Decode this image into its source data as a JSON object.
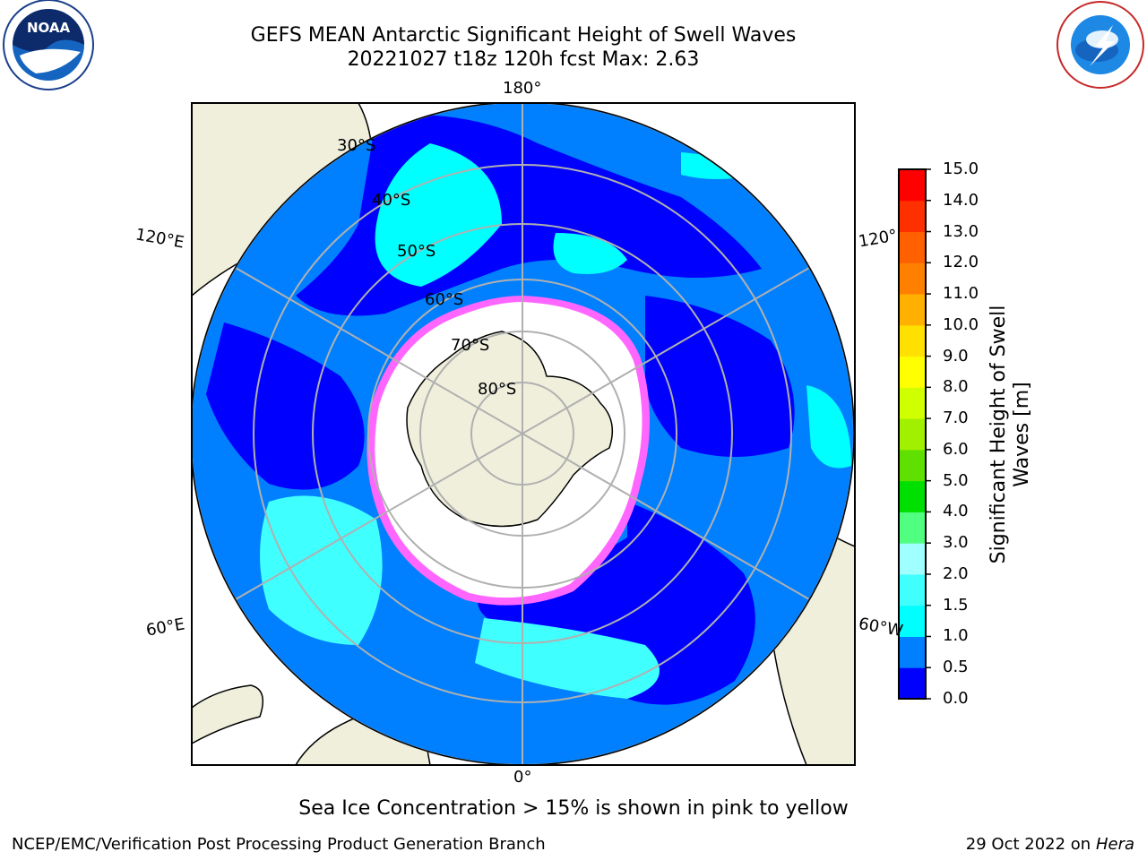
{
  "title_line1": "GEFS MEAN Antarctic Significant Height of Swell Waves",
  "title_line2": "20221027 t18z 120h fcst   Max: 2.63",
  "lon_labels": {
    "top": "180°",
    "bottom": "0°",
    "left_upper": "120°E",
    "left_lower": "60°E",
    "right_upper": "120°",
    "right_lower": "60°W"
  },
  "lat_labels": [
    "30°S",
    "40°S",
    "50°S",
    "60°S",
    "70°S",
    "80°S"
  ],
  "colorbar": {
    "title_line1": "Significant Height of Swell",
    "title_line2": "Waves [m]",
    "ticks": [
      "0.0",
      "0.5",
      "1.0",
      "1.5",
      "2.0",
      "3.0",
      "4.0",
      "5.0",
      "6.0",
      "7.0",
      "8.0",
      "9.0",
      "10.0",
      "11.0",
      "12.0",
      "13.0",
      "14.0",
      "15.0"
    ],
    "colors": [
      "#0000ff",
      "#0080ff",
      "#00ffff",
      "#40ffff",
      "#a0ffff",
      "#50ff80",
      "#00e000",
      "#60e000",
      "#a0f000",
      "#d0ff00",
      "#ffff00",
      "#ffe000",
      "#ffb000",
      "#ff8000",
      "#ff6000",
      "#ff3000",
      "#ff0000"
    ]
  },
  "logos": {
    "noaa": "NOAA",
    "nws": "NATIONAL WEATHER SERVICE"
  },
  "footer_note": "Sea Ice Concentration > 15% is shown in pink to yellow",
  "credit": "NCEP/EMC/Verification Post Processing Product Generation Branch",
  "date_prefix": "29 Oct 2022 on ",
  "date_host": "Hera"
}
